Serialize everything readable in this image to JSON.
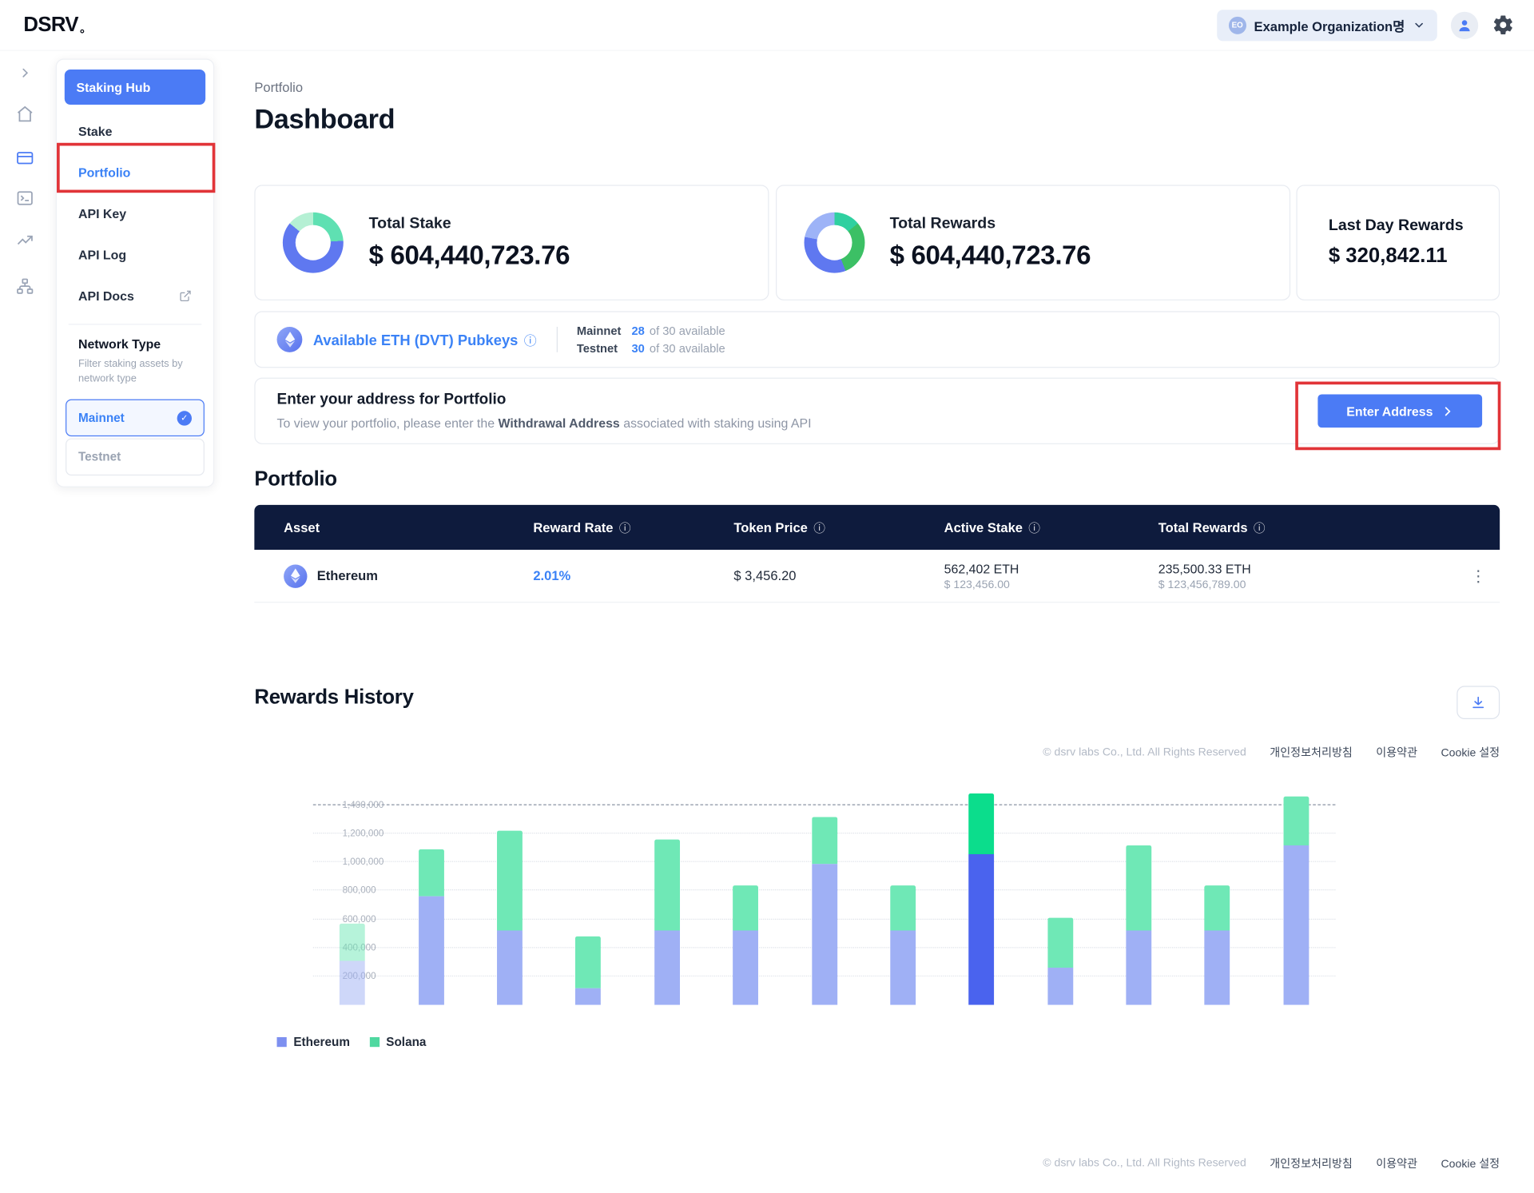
{
  "header": {
    "logo": "DSRV",
    "org_badge": "EO",
    "org_name": "Example Organization명"
  },
  "sidebar": {
    "hub_button": "Staking Hub",
    "items": [
      {
        "label": "Stake",
        "active": false,
        "external": false
      },
      {
        "label": "Portfolio",
        "active": true,
        "external": false
      },
      {
        "label": "API Key",
        "active": false,
        "external": false
      },
      {
        "label": "API Log",
        "active": false,
        "external": false
      },
      {
        "label": "API Docs",
        "active": false,
        "external": true
      }
    ],
    "network_type": {
      "title": "Network Type",
      "subtitle": "Filter staking assets by network type",
      "options": [
        {
          "label": "Mainnet",
          "selected": true
        },
        {
          "label": "Testnet",
          "selected": false
        }
      ]
    }
  },
  "main": {
    "breadcrumb": "Portfolio",
    "title": "Dashboard",
    "stats": {
      "total_stake": {
        "label": "Total Stake",
        "value": "$ 604,440,723.76",
        "donut": [
          {
            "color": "#5fe0b2",
            "pct": 24
          },
          {
            "color": "#5f78f0",
            "pct": 62
          },
          {
            "color": "#b5f0d4",
            "pct": 14
          }
        ]
      },
      "total_rewards": {
        "label": "Total Rewards",
        "value": "$ 604,440,723.76",
        "donut": [
          {
            "color": "#2fd0a0",
            "pct": 14
          },
          {
            "color": "#3cc065",
            "pct": 30
          },
          {
            "color": "#5f78f0",
            "pct": 34
          },
          {
            "color": "#9db3f7",
            "pct": 22
          }
        ]
      },
      "last_day": {
        "label": "Last Day Rewards",
        "value": "$ 320,842.11"
      }
    },
    "pubkeys": {
      "title": "Available ETH (DVT) Pubkeys",
      "info_icon": "ⓘ",
      "rows": [
        {
          "network": "Mainnet",
          "count": "28",
          "suffix": "of 30 available"
        },
        {
          "network": "Testnet",
          "count": "30",
          "suffix": "of 30 available"
        }
      ]
    },
    "address_prompt": {
      "title": "Enter your address for Portfolio",
      "desc_prefix": "To view your portfolio, please enter the ",
      "desc_bold": "Withdrawal Address",
      "desc_suffix": " associated with staking using API",
      "button": "Enter Address"
    },
    "portfolio": {
      "title": "Portfolio",
      "columns": [
        {
          "label": "Asset",
          "info": false
        },
        {
          "label": "Reward Rate",
          "info": true
        },
        {
          "label": "Token Price",
          "info": true
        },
        {
          "label": "Active Stake",
          "info": true
        },
        {
          "label": "Total Rewards",
          "info": true
        }
      ],
      "rows": [
        {
          "asset": "Ethereum",
          "reward_rate": "2.01%",
          "token_price": "$ 3,456.20",
          "active_stake": "562,402 ETH",
          "active_stake_usd": "$ 123,456.00",
          "total_rewards": "235,500.33 ETH",
          "total_rewards_usd": "$ 123,456,789.00"
        }
      ]
    },
    "rewards_history": {
      "title": "Rewards History"
    }
  },
  "footer": {
    "copyright": "© dsrv labs Co., Ltd. All Rights Reserved",
    "links": [
      "개인정보처리방침",
      "이용약관",
      "Cookie 설정"
    ]
  },
  "annotations": {
    "color": "#e13438"
  },
  "chart_data": {
    "type": "bar",
    "stacked": true,
    "title": "Rewards History",
    "categories": [
      "",
      "",
      "",
      "",
      "",
      "",
      "",
      "",
      "",
      "",
      "",
      "",
      ""
    ],
    "series": [
      {
        "name": "Ethereum",
        "color": "#9fb0f5",
        "highlight_color": "#4a63ee",
        "legend_color": "#7d90f0",
        "values": [
          310000,
          760000,
          520000,
          120000,
          520000,
          520000,
          990000,
          520000,
          1060000,
          260000,
          520000,
          520000,
          1120000
        ]
      },
      {
        "name": "Solana",
        "color": "#6fe8b6",
        "highlight_color": "#0bdd8c",
        "legend_color": "#4fd8a0",
        "values": [
          260000,
          330000,
          700000,
          360000,
          640000,
          320000,
          330000,
          320000,
          420000,
          350000,
          600000,
          320000,
          340000
        ]
      }
    ],
    "highlight_index": 8,
    "faded_index": 0,
    "ylim": [
      0,
      1400000
    ],
    "yticks": [
      200000,
      400000,
      600000,
      800000,
      1000000,
      1200000,
      1400000
    ],
    "ytick_labels": [
      "200,000",
      "400,000",
      "600,000",
      "800,000",
      "1,000,000",
      "1,200,000",
      "1,400,000"
    ],
    "grid": "dotted",
    "xlabel": "",
    "ylabel": "",
    "legend_position": "bottom-left"
  }
}
